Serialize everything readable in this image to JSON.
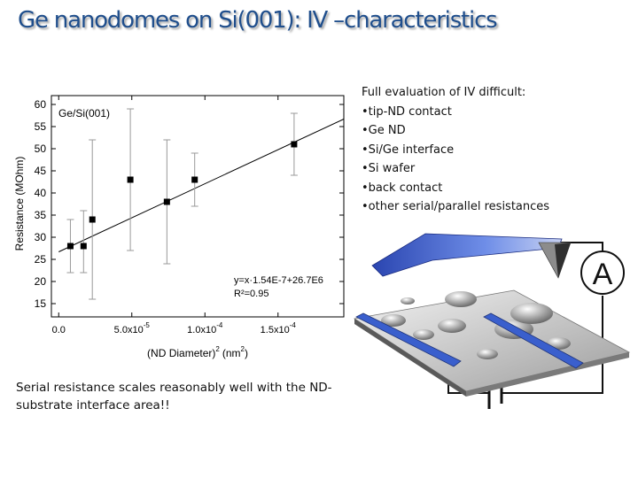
{
  "slide": {
    "title": "Ge nanodomes on Si(001): IV –characteristics"
  },
  "notes": {
    "heading": "Full evaluation of IV difficult:",
    "items": [
      "•tip-ND contact",
      "•Ge ND",
      "•Si/Ge interface",
      "•Si wafer",
      "•back contact",
      "•other serial/parallel resistances"
    ]
  },
  "caption": "Serial resistance scales reasonably well with the ND-substrate interface area!!",
  "setup": {
    "ammeter_label": "A",
    "colors": {
      "tip": "#3a5fcd",
      "contacts": "#3a5fcd"
    }
  },
  "chart_data": {
    "type": "scatter",
    "sample_label": "Ge/Si(001)",
    "fit_equation": "y=x·1.54E-7+26.7E6",
    "fit_r2": "R²=0.95",
    "xlabel": "(ND Diameter)",
    "xlabel_exp": "2",
    "xlabel_unit": "(nm",
    "xlabel_unit_exp": "2",
    "xlabel_close": ")",
    "ylabel": "Resistance (MOhm)",
    "xlim": [
      -5e-06,
      0.000195
    ],
    "ylim": [
      12,
      62
    ],
    "yticks": [
      15,
      20,
      25,
      30,
      35,
      40,
      45,
      50,
      55,
      60
    ],
    "xticks": [
      {
        "value": 0,
        "mantissa": "0.0",
        "exp": ""
      },
      {
        "value": 5e-05,
        "mantissa": "5.0x10",
        "exp": "-5"
      },
      {
        "value": 0.0001,
        "mantissa": "1.0x10",
        "exp": "-4"
      },
      {
        "value": 0.00015,
        "mantissa": "1.5x10",
        "exp": "-4"
      }
    ],
    "points": [
      {
        "x": 8e-06,
        "y": 28,
        "err_low": 22,
        "err_high": 34
      },
      {
        "x": 1.7e-05,
        "y": 28,
        "err_low": 22,
        "err_high": 36
      },
      {
        "x": 2.3e-05,
        "y": 34,
        "err_low": 16,
        "err_high": 52
      },
      {
        "x": 4.9e-05,
        "y": 43,
        "err_low": 27,
        "err_high": 59
      },
      {
        "x": 7.4e-05,
        "y": 38,
        "err_low": 24,
        "err_high": 52
      },
      {
        "x": 9.3e-05,
        "y": 43,
        "err_low": 37,
        "err_high": 49
      },
      {
        "x": 0.000161,
        "y": 51,
        "err_low": 44,
        "err_high": 58
      }
    ],
    "fit_line": {
      "x": [
        0,
        0.000195
      ],
      "y": [
        26.7,
        56.7
      ]
    },
    "grid": false,
    "colors": {
      "markers": "#000000",
      "fit": "#000000",
      "errorbars": "#999999"
    }
  }
}
